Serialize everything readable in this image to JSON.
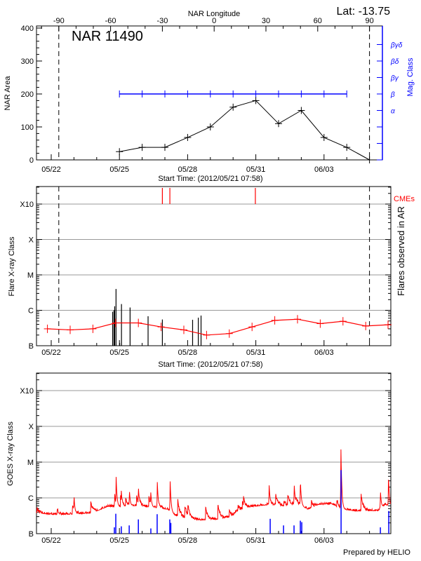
{
  "header": {
    "lat_label": "Lat: -13.75",
    "footer": "Prepared by HELIO"
  },
  "colors": {
    "area": "#000000",
    "mag_class": "#0000ff",
    "flare_avg": "#ff0000",
    "cme": "#ff0000",
    "goes_flux": "#ff0000",
    "goes_events": "#0000ff",
    "grid": "#999999"
  },
  "chart_data": [
    {
      "type": "line",
      "panel": "nar-area",
      "title": "NAR 11490",
      "xlabel": "Start Time: (2012/05/21 07:58)",
      "ylabel": "NAR Area",
      "top_axis_label": "NAR Longitude",
      "top_ticks": [
        "-90",
        "-60",
        "-30",
        "0",
        "30",
        "60",
        "90"
      ],
      "x_ticks": [
        "05/22",
        "05/25",
        "05/28",
        "05/31",
        "06/03"
      ],
      "y_ticks": [
        "0",
        "100",
        "200",
        "300",
        "400"
      ],
      "ylim": [
        0,
        400
      ],
      "right_axis_label": "Mag. Class",
      "right_ticks": [
        "α",
        "β",
        "βγ",
        "βδ",
        "βγδ"
      ],
      "limb_markers": [
        "05/22 08:00",
        "06/05 00:00"
      ],
      "area": {
        "x": [
          "05/25 00:00",
          "05/26 00:00",
          "05/27 00:00",
          "05/28 00:00",
          "05/29 00:00",
          "05/30 00:00",
          "05/31 00:00",
          "06/01 00:00",
          "06/02 00:00",
          "06/03 00:00",
          "06/04 00:00",
          "06/05 00:00"
        ],
        "y": [
          25,
          38,
          38,
          68,
          100,
          160,
          180,
          110,
          150,
          68,
          38,
          0
        ]
      },
      "mag_class": {
        "x": [
          "05/25 00:00",
          "05/26 00:00",
          "05/27 00:00",
          "05/28 00:00",
          "05/29 00:00",
          "05/30 00:00",
          "05/31 00:00",
          "06/01 00:00",
          "06/02 00:00",
          "06/03 00:00",
          "06/04 00:00"
        ],
        "y": [
          "β",
          "β",
          "β",
          "β",
          "β",
          "β",
          "β",
          "β",
          "β",
          "β",
          "β"
        ]
      }
    },
    {
      "type": "bar",
      "panel": "flares",
      "xlabel": "Start Time: (2012/05/21 07:58)",
      "ylabel": "Flare X-ray Class",
      "right_axis_label": "Flares observed in AR",
      "cme_label": "CMEs",
      "x_ticks": [
        "05/22",
        "05/25",
        "05/28",
        "05/31",
        "06/03"
      ],
      "y_ticks": [
        "B",
        "C",
        "M",
        "X",
        "X10"
      ],
      "y_scale": "log",
      "grid": true,
      "limb_markers": [
        "05/22 08:00",
        "06/05 00:00"
      ],
      "flares": {
        "x": [
          "05/24 16:50",
          "05/24 18:15",
          "05/24 19:00",
          "05/24 20:25",
          "05/25 00:15",
          "05/25 02:10",
          "05/25 11:15",
          "05/26 06:15",
          "05/26 21:20",
          "05/28 05:15",
          "05/28 11:15",
          "05/28 14:10"
        ],
        "y": [
          "B9.1",
          "C1.0",
          "C1.3",
          "C4.0",
          "B1.2",
          "C1.5",
          "C1.2",
          "B6.8",
          "B5.5",
          "B5.4",
          "B6.2",
          "B7.1"
        ]
      },
      "daily_average": {
        "x": [
          "05/21 20:00",
          "05/22 20:00",
          "05/23 20:00",
          "05/24 20:00",
          "05/25 20:00",
          "05/26 20:00",
          "05/27 20:00",
          "05/28 20:00",
          "05/29 20:00",
          "05/30 20:00",
          "05/31 20:00",
          "06/01 20:00",
          "06/02 20:00",
          "06/03 20:00",
          "06/04 20:00",
          "06/05 20:00"
        ],
        "y": [
          "B3.0",
          "B2.8",
          "B3.0",
          "B4.4",
          "B4.4",
          "B3.4",
          "B2.8",
          "B2.0",
          "B2.2",
          "B3.4",
          "B5.2",
          "B5.6",
          "B4.2",
          "B4.9",
          "B3.6",
          "B3.9"
        ]
      },
      "cmes": [
        "05/26 21:20",
        "05/27 05:15",
        "05/30 23:30"
      ]
    },
    {
      "type": "line",
      "panel": "goes",
      "ylabel": "GOES X-ray Class",
      "x_ticks": [
        "05/22",
        "05/25",
        "05/28",
        "05/31",
        "06/03"
      ],
      "y_ticks": [
        "B",
        "C",
        "M",
        "X",
        "X10"
      ],
      "y_scale": "log",
      "grid": true,
      "flux_baseline": {
        "x": [
          "05/21 08:24",
          "05/22 03:00",
          "05/22 23:00",
          "05/23 19:00",
          "05/24 12:00",
          "05/25 02:00",
          "05/25 16:00",
          "05/26 09:00",
          "05/27 03:00",
          "05/27 11:00",
          "05/28 01:00",
          "05/28 13:00",
          "05/29 06:00",
          "05/29 23:00",
          "05/30 03:00",
          "05/30 16:00",
          "05/31 03:00",
          "05/31 15:00",
          "06/01 05:00",
          "06/01 19:00",
          "06/02 07:00",
          "06/02 18:00",
          "06/03 08:00",
          "06/03 18:00",
          "06/04 10:00",
          "06/05 09:00",
          "06/05 17:00",
          "06/05 23:00"
        ],
        "y": [
          "B3.8",
          "B3.4",
          "B3.5",
          "B3.8",
          "B5.8",
          "B5.5",
          "B6.0",
          "B5.5",
          "B4.8",
          "B3.2",
          "B2.6",
          "B2.4",
          "B2.5",
          "B3.0",
          "B4.1",
          "B5.5",
          "B6.0",
          "B6.5",
          "B6.0",
          "B6.9",
          "B4.8",
          "B6.5",
          "B6.9",
          "B4.8",
          "B4.3",
          "B4.4",
          "B6.5",
          "B5.5"
        ]
      },
      "flux_peaks": {
        "x": [
          "05/23 00:00",
          "05/24 19:00",
          "05/24 20:30",
          "05/25 02:00",
          "05/25 10:30",
          "05/25 20:00",
          "05/26 09:00",
          "05/26 16:00",
          "05/27 05:30",
          "05/31 14:00",
          "06/01 16:30",
          "06/01 23:00",
          "06/03 17:45",
          "06/05 11:30",
          "06/05 20:00"
        ],
        "y": [
          "C1.3",
          "C1.4",
          "C4.2",
          "C1.6",
          "C1.7",
          "C2.2",
          "C1.6",
          "C2.9",
          "C3.3",
          "C2.6",
          "C2.5",
          "C3.4",
          "M3.5",
          "C1.6",
          "C4.5"
        ]
      },
      "events": {
        "x": [
          "05/24 18:40",
          "05/24 20:10",
          "05/25 02:00",
          "05/25 10:20",
          "05/25 16:00",
          "05/25 20:00",
          "05/26 09:10",
          "05/26 15:50",
          "05/27 05:10",
          "05/27 06:15",
          "05/31 15:10",
          "06/01 05:15",
          "06/01 16:20",
          "06/01 23:00",
          "06/02 00:30",
          "06/03 18:00",
          "06/05 11:30",
          "06/05 20:20"
        ],
        "y": [
          "B1.5",
          "B3.6",
          "B1.6",
          "B1.7",
          "B1.0",
          "B2.5",
          "B1.4",
          "B3.5",
          "B2.5",
          "B2.0",
          "B2.6",
          "B1.7",
          "B1.7",
          "B2.3",
          "B2.1",
          "C6.0",
          "B1.5",
          "B4.3"
        ]
      }
    }
  ]
}
